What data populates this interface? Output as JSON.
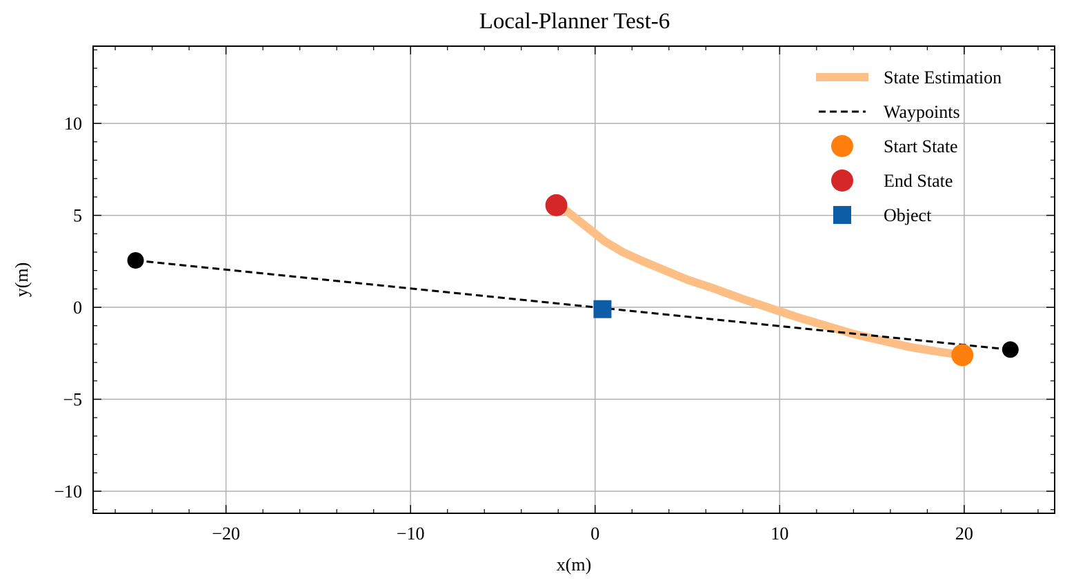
{
  "chart_data": {
    "type": "line",
    "title": "Local-Planner Test-6",
    "xlabel": "x(m)",
    "ylabel": "y(m)",
    "xlim": [
      -27.2,
      24.9
    ],
    "ylim": [
      -11.2,
      14.2
    ],
    "xticks": [
      -20,
      -10,
      0,
      10,
      20
    ],
    "xtick_labels": [
      "−20",
      "−10",
      "0",
      "10",
      "20"
    ],
    "xminor_step": 2,
    "yticks": [
      -10,
      -5,
      0,
      5,
      10
    ],
    "ytick_labels": [
      "−10",
      "−5",
      "0",
      "5",
      "10"
    ],
    "yminor_step": 1,
    "grid": true,
    "legend_position": "top-right",
    "series": [
      {
        "name": "State Estimation",
        "kind": "line",
        "color": "#fdbf86",
        "x": [
          -2.0,
          -1.5,
          -1.0,
          -0.3,
          0.5,
          1.5,
          2.6,
          3.8,
          5.0,
          6.5,
          8.0,
          9.5,
          11.0,
          12.5,
          14.0,
          15.5,
          17.0,
          18.5,
          19.9
        ],
        "y": [
          5.55,
          5.2,
          4.8,
          4.25,
          3.6,
          3.0,
          2.5,
          2.0,
          1.5,
          1.0,
          0.45,
          -0.05,
          -0.55,
          -1.0,
          -1.45,
          -1.8,
          -2.15,
          -2.4,
          -2.6
        ]
      },
      {
        "name": "Waypoints",
        "kind": "dashed-line",
        "color": "#000000",
        "x": [
          -24.9,
          22.5
        ],
        "y": [
          2.55,
          -2.3
        ]
      },
      {
        "name": "Start State",
        "kind": "marker-circle",
        "color": "#ff7f0e",
        "x": [
          19.9
        ],
        "y": [
          -2.6
        ]
      },
      {
        "name": "End State",
        "kind": "marker-circle",
        "color": "#d62728",
        "x": [
          -2.1
        ],
        "y": [
          5.55
        ]
      },
      {
        "name": "Object",
        "kind": "marker-square",
        "color": "#0c5da5",
        "x": [
          0.4
        ],
        "y": [
          -0.1
        ]
      }
    ],
    "extra_points": {
      "kind": "marker-circle",
      "color": "#000000",
      "x": [
        -24.9,
        22.5
      ],
      "y": [
        2.55,
        -2.3
      ]
    }
  }
}
